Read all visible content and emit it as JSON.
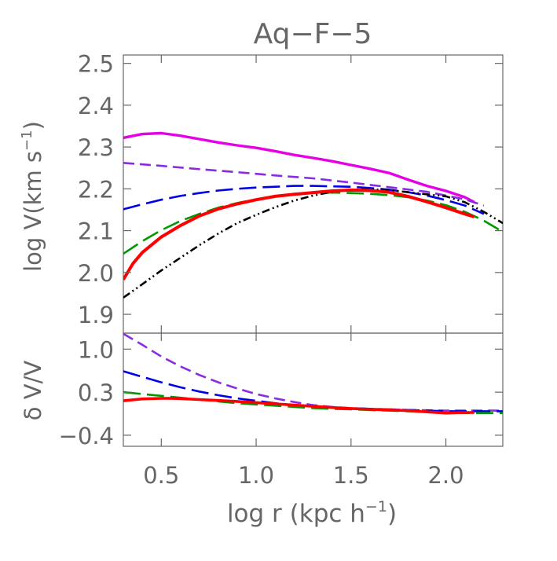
{
  "chart_data": {
    "type": "line",
    "title": "Aq−F−5",
    "xlabel": "log r (kpc h",
    "xlabel_sup": "−1",
    "xlabel_close": ")",
    "xlim": [
      0.3,
      2.3
    ],
    "x_ticks": [
      {
        "value": 0.5,
        "label": "0.5"
      },
      {
        "value": 1.0,
        "label": "1.0"
      },
      {
        "value": 1.5,
        "label": "1.5"
      },
      {
        "value": 2.0,
        "label": "2.0"
      }
    ],
    "panels": [
      {
        "id": "top",
        "ylabel": "log V(km  s",
        "ylabel_sup": "−1",
        "ylabel_close": ")",
        "ylim": [
          1.855,
          2.52
        ],
        "y_ticks": [
          {
            "value": 1.9,
            "label": "1.9"
          },
          {
            "value": 2.0,
            "label": "2.0"
          },
          {
            "value": 2.1,
            "label": "2.1"
          },
          {
            "value": 2.2,
            "label": "2.2"
          },
          {
            "value": 2.3,
            "label": "2.3"
          },
          {
            "value": 2.4,
            "label": "2.4"
          },
          {
            "value": 2.5,
            "label": "2.5"
          }
        ],
        "series": [
          {
            "color": "#e600e6",
            "dash": "solid",
            "width": 3.4,
            "x": [
              0.3,
              0.4,
              0.5,
              0.6,
              0.7,
              0.8,
              0.9,
              1.0,
              1.1,
              1.2,
              1.3,
              1.4,
              1.5,
              1.6,
              1.7,
              1.8,
              1.9,
              2.0,
              2.1,
              2.15
            ],
            "y": [
              2.322,
              2.331,
              2.333,
              2.327,
              2.319,
              2.311,
              2.304,
              2.298,
              2.29,
              2.281,
              2.274,
              2.266,
              2.257,
              2.248,
              2.238,
              2.222,
              2.207,
              2.195,
              2.18,
              2.168
            ]
          },
          {
            "color": "#8a2be2",
            "dash": "medium",
            "width": 2.6,
            "x": [
              0.3,
              0.5,
              0.7,
              0.9,
              1.1,
              1.3,
              1.5,
              1.7,
              1.9,
              2.1,
              2.2
            ],
            "y": [
              2.262,
              2.255,
              2.247,
              2.24,
              2.232,
              2.225,
              2.215,
              2.204,
              2.193,
              2.175,
              2.16
            ]
          },
          {
            "color": "#0000e6",
            "dash": "long",
            "width": 2.6,
            "x": [
              0.3,
              0.4,
              0.5,
              0.6,
              0.7,
              0.8,
              0.9,
              1.0,
              1.1,
              1.2,
              1.3,
              1.4,
              1.5,
              1.6,
              1.7,
              1.8,
              1.9,
              2.0,
              2.1,
              2.2
            ],
            "y": [
              2.151,
              2.163,
              2.174,
              2.183,
              2.19,
              2.196,
              2.2,
              2.203,
              2.205,
              2.207,
              2.207,
              2.206,
              2.205,
              2.202,
              2.198,
              2.192,
              2.184,
              2.173,
              2.16,
              2.14
            ]
          },
          {
            "color": "#009900",
            "dash": "long",
            "width": 2.6,
            "x": [
              0.3,
              0.4,
              0.5,
              0.6,
              0.7,
              0.8,
              0.9,
              1.0,
              1.1,
              1.2,
              1.3,
              1.4,
              1.5,
              1.6,
              1.7,
              1.8,
              1.9,
              2.0,
              2.1,
              2.2,
              2.3
            ],
            "y": [
              2.045,
              2.075,
              2.101,
              2.123,
              2.14,
              2.155,
              2.166,
              2.175,
              2.182,
              2.187,
              2.19,
              2.191,
              2.19,
              2.188,
              2.185,
              2.18,
              2.172,
              2.161,
              2.145,
              2.124,
              2.097
            ]
          },
          {
            "color": "#000000",
            "dash": "dashdotdot",
            "width": 2.6,
            "x": [
              0.3,
              0.4,
              0.5,
              0.6,
              0.7,
              0.8,
              0.9,
              1.0,
              1.1,
              1.2,
              1.3,
              1.4,
              1.5,
              1.6,
              1.7,
              1.8,
              1.9,
              2.0,
              2.1,
              2.2,
              2.3
            ],
            "y": [
              1.94,
              1.972,
              2.005,
              2.035,
              2.065,
              2.093,
              2.118,
              2.138,
              2.156,
              2.172,
              2.184,
              2.193,
              2.198,
              2.199,
              2.197,
              2.192,
              2.187,
              2.182,
              2.168,
              2.145,
              2.118
            ]
          },
          {
            "color": "#ff0000",
            "dash": "solid",
            "width": 4.0,
            "x": [
              0.3,
              0.35,
              0.4,
              0.5,
              0.6,
              0.7,
              0.8,
              0.9,
              1.0,
              1.1,
              1.2,
              1.3,
              1.4,
              1.5,
              1.6,
              1.7,
              1.8,
              1.9,
              2.0,
              2.1,
              2.15
            ],
            "y": [
              1.983,
              2.021,
              2.048,
              2.085,
              2.112,
              2.135,
              2.152,
              2.164,
              2.174,
              2.182,
              2.187,
              2.191,
              2.195,
              2.197,
              2.196,
              2.192,
              2.182,
              2.169,
              2.155,
              2.14,
              2.133
            ]
          }
        ]
      },
      {
        "id": "bottom",
        "ylabel": "δ V/V",
        "ylim": [
          -0.58,
          1.26
        ],
        "y_ticks": [
          {
            "value": -0.4,
            "label": "−0.4"
          },
          {
            "value": 0.3,
            "label": "0.3"
          },
          {
            "value": 1.0,
            "label": "1.0"
          }
        ],
        "series": [
          {
            "color": "#8a2be2",
            "dash": "medium",
            "width": 2.6,
            "x": [
              0.3,
              0.4,
              0.5,
              0.6,
              0.7,
              0.8,
              0.9,
              1.0,
              1.1,
              1.2,
              1.3,
              1.4,
              1.5,
              1.6,
              1.7,
              1.8,
              1.9,
              2.0,
              2.1,
              2.2,
              2.3
            ],
            "y": [
              1.25,
              1.07,
              0.88,
              0.72,
              0.58,
              0.46,
              0.36,
              0.27,
              0.2,
              0.14,
              0.09,
              0.06,
              0.04,
              0.03,
              0.02,
              0.01,
              0.005,
              0.0,
              0.0,
              0.0,
              0.0
            ]
          },
          {
            "color": "#0000e6",
            "dash": "long",
            "width": 2.6,
            "x": [
              0.3,
              0.4,
              0.5,
              0.6,
              0.7,
              0.8,
              0.9,
              1.0,
              1.1,
              1.2,
              1.3,
              1.4,
              1.5,
              1.6,
              1.7,
              1.8,
              1.9,
              2.0,
              2.1,
              2.2,
              2.3
            ],
            "y": [
              0.64,
              0.55,
              0.46,
              0.38,
              0.31,
              0.25,
              0.2,
              0.16,
              0.12,
              0.09,
              0.07,
              0.05,
              0.04,
              0.03,
              0.02,
              0.01,
              0.0,
              -0.01,
              -0.01,
              -0.01,
              -0.01
            ]
          },
          {
            "color": "#009900",
            "dash": "long",
            "width": 2.6,
            "x": [
              0.3,
              0.4,
              0.5,
              0.6,
              0.7,
              0.8,
              0.9,
              1.0,
              1.1,
              1.2,
              1.3,
              1.4,
              1.5,
              1.6,
              1.7,
              1.8,
              1.9,
              2.0,
              2.1,
              2.2,
              2.3
            ],
            "y": [
              0.3,
              0.27,
              0.24,
              0.21,
              0.18,
              0.15,
              0.12,
              0.1,
              0.08,
              0.06,
              0.04,
              0.03,
              0.02,
              0.01,
              0.0,
              -0.01,
              -0.02,
              -0.03,
              -0.04,
              -0.04,
              -0.04
            ]
          },
          {
            "color": "#ff0000",
            "dash": "solid",
            "width": 3.6,
            "x": [
              0.3,
              0.4,
              0.5,
              0.55,
              0.6,
              0.7,
              0.8,
              0.9,
              1.0,
              1.1,
              1.2,
              1.3,
              1.4,
              1.5,
              1.6,
              1.7,
              1.8,
              1.9,
              2.0,
              2.1,
              2.15
            ],
            "y": [
              0.16,
              0.19,
              0.2,
              0.2,
              0.195,
              0.18,
              0.165,
              0.15,
              0.13,
              0.11,
              0.09,
              0.07,
              0.05,
              0.035,
              0.02,
              0.01,
              0.0,
              -0.02,
              -0.04,
              -0.03,
              -0.03
            ]
          }
        ]
      }
    ]
  }
}
